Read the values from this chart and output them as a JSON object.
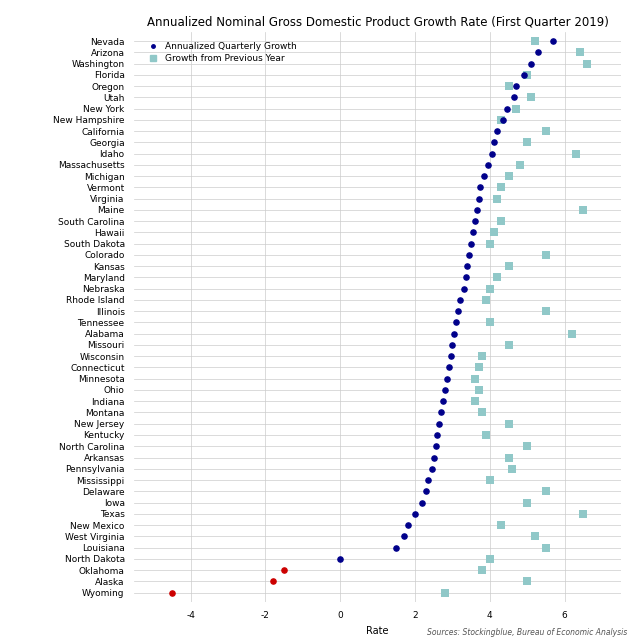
{
  "title": "Annualized Nominal Gross Domestic Product Growth Rate (First Quarter 2019)",
  "xlabel": "Rate",
  "source": "Sources: Stockingblue, Bureau of Economic Analysis",
  "states": [
    "Nevada",
    "Arizona",
    "Washington",
    "Florida",
    "Oregon",
    "Utah",
    "New York",
    "New Hampshire",
    "California",
    "Georgia",
    "Idaho",
    "Massachusetts",
    "Michigan",
    "Vermont",
    "Virginia",
    "Maine",
    "South Carolina",
    "Hawaii",
    "South Dakota",
    "Colorado",
    "Kansas",
    "Maryland",
    "Nebraska",
    "Rhode Island",
    "Illinois",
    "Tennessee",
    "Alabama",
    "Missouri",
    "Wisconsin",
    "Connecticut",
    "Minnesota",
    "Ohio",
    "Indiana",
    "Montana",
    "New Jersey",
    "Kentucky",
    "North Carolina",
    "Arkansas",
    "Pennsylvania",
    "Mississippi",
    "Delaware",
    "Iowa",
    "Texas",
    "New Mexico",
    "West Virginia",
    "Louisiana",
    "North Dakota",
    "Oklahoma",
    "Alaska",
    "Wyoming"
  ],
  "quarterly_growth": [
    5.7,
    5.3,
    5.1,
    4.9,
    4.7,
    4.65,
    4.45,
    4.35,
    4.2,
    4.1,
    4.05,
    3.95,
    3.85,
    3.75,
    3.7,
    3.65,
    3.6,
    3.55,
    3.5,
    3.45,
    3.4,
    3.35,
    3.3,
    3.2,
    3.15,
    3.1,
    3.05,
    3.0,
    2.95,
    2.9,
    2.85,
    2.8,
    2.75,
    2.7,
    2.65,
    2.6,
    2.55,
    2.5,
    2.45,
    2.35,
    2.3,
    2.2,
    2.0,
    1.8,
    1.7,
    1.5,
    0.0,
    -1.5,
    -1.8,
    -4.5
  ],
  "yearly_growth": [
    5.2,
    6.4,
    6.6,
    5.0,
    4.5,
    5.1,
    4.7,
    4.3,
    5.5,
    5.0,
    6.3,
    4.8,
    4.5,
    4.3,
    4.2,
    6.5,
    4.3,
    4.1,
    4.0,
    5.5,
    4.5,
    4.2,
    4.0,
    3.9,
    5.5,
    4.0,
    6.2,
    4.5,
    3.8,
    3.7,
    3.6,
    3.7,
    3.6,
    3.8,
    4.5,
    3.9,
    5.0,
    4.5,
    4.6,
    4.0,
    5.5,
    5.0,
    6.5,
    4.3,
    5.2,
    5.5,
    4.0,
    3.8,
    5.0,
    2.8
  ],
  "dot_color_positive": "#00008B",
  "dot_color_negative": "#CC0000",
  "square_color": "#90C8C8",
  "background_color": "#FFFFFF",
  "grid_color": "#CCCCCC",
  "xlim": [
    -5.5,
    7.5
  ],
  "xticks": [
    -4,
    -2,
    0,
    2,
    4,
    6
  ],
  "title_fontsize": 8.5,
  "axis_fontsize": 7,
  "tick_fontsize": 6.5,
  "legend_fontsize": 6.5,
  "source_fontsize": 5.5
}
